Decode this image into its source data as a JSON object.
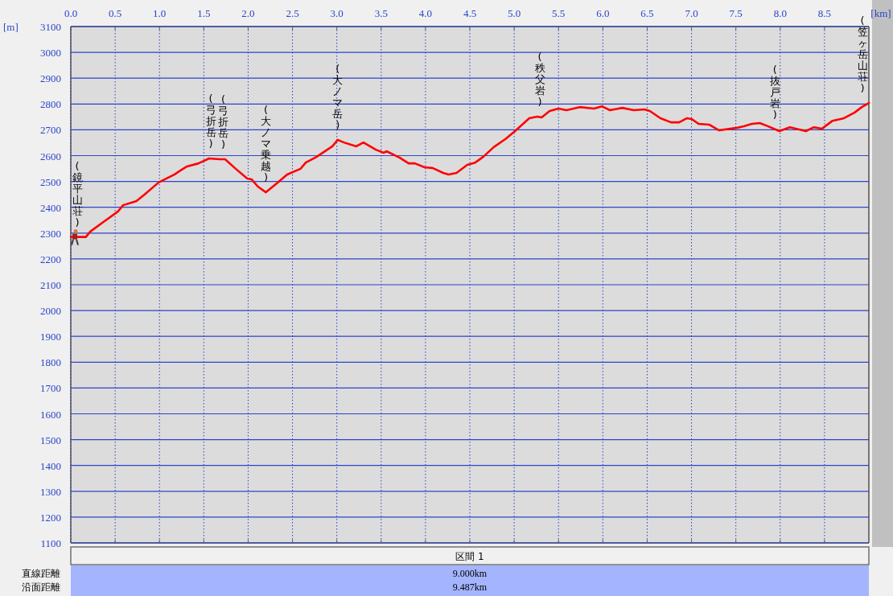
{
  "chart_data": {
    "type": "line",
    "xlabel": "[km]",
    "ylabel": "[m]",
    "xlim": [
      0,
      9
    ],
    "xticks": [
      {
        "value": 0,
        "label": "0.0"
      },
      {
        "value": 0.5,
        "label": "0.5"
      },
      {
        "value": 1,
        "label": "1.0"
      },
      {
        "value": 1.5,
        "label": "1.5"
      },
      {
        "value": 2,
        "label": "2.0"
      },
      {
        "value": 2.5,
        "label": "2.5"
      },
      {
        "value": 3,
        "label": "3.0"
      },
      {
        "value": 3.5,
        "label": "3.5"
      },
      {
        "value": 4,
        "label": "4.0"
      },
      {
        "value": 4.5,
        "label": "4.5"
      },
      {
        "value": 5,
        "label": "5.0"
      },
      {
        "value": 5.5,
        "label": "5.5"
      },
      {
        "value": 6,
        "label": "6.0"
      },
      {
        "value": 6.5,
        "label": "6.5"
      },
      {
        "value": 7,
        "label": "7.0"
      },
      {
        "value": 7.5,
        "label": "7.5"
      },
      {
        "value": 8,
        "label": "8.0"
      },
      {
        "value": 8.5,
        "label": "8.5"
      }
    ],
    "ylim": [
      1100,
      3100
    ],
    "yticks": [
      1100,
      1200,
      1300,
      1400,
      1500,
      1600,
      1700,
      1800,
      1900,
      2000,
      2100,
      2200,
      2300,
      2400,
      2500,
      2600,
      2700,
      2800,
      2900,
      3000,
      3100
    ],
    "grid": true,
    "marker": "none",
    "line_style": "solid",
    "series": [
      {
        "color": "#ff0000",
        "x": [
          0.0,
          0.17,
          0.22,
          0.38,
          0.53,
          0.59,
          0.74,
          0.83,
          0.99,
          1.17,
          1.22,
          1.31,
          1.44,
          1.56,
          1.68,
          1.74,
          1.86,
          1.99,
          2.04,
          2.11,
          2.2,
          2.32,
          2.44,
          2.59,
          2.65,
          2.77,
          2.95,
          3.01,
          3.08,
          3.22,
          3.3,
          3.44,
          3.53,
          3.56,
          3.71,
          3.81,
          3.88,
          3.99,
          4.08,
          4.2,
          4.26,
          4.35,
          4.47,
          4.56,
          4.65,
          4.77,
          4.9,
          5.01,
          5.11,
          5.17,
          5.26,
          5.31,
          5.4,
          5.5,
          5.59,
          5.74,
          5.9,
          5.99,
          6.08,
          6.22,
          6.35,
          6.47,
          6.53,
          6.65,
          6.77,
          6.86,
          6.95,
          7.0,
          7.08,
          7.2,
          7.31,
          7.5,
          7.59,
          7.68,
          7.77,
          7.86,
          7.99,
          8.11,
          8.29,
          8.38,
          8.47,
          8.59,
          8.72,
          8.84,
          8.92,
          9.0
        ],
        "values": [
          2285,
          2285,
          2306,
          2346,
          2383,
          2408,
          2424,
          2449,
          2496,
          2527,
          2539,
          2558,
          2570,
          2589,
          2586,
          2586,
          2549,
          2511,
          2508,
          2480,
          2458,
          2492,
          2527,
          2549,
          2573,
          2595,
          2636,
          2661,
          2651,
          2636,
          2651,
          2623,
          2611,
          2617,
          2592,
          2570,
          2570,
          2555,
          2552,
          2533,
          2527,
          2533,
          2564,
          2573,
          2595,
          2633,
          2664,
          2695,
          2726,
          2745,
          2751,
          2748,
          2773,
          2782,
          2776,
          2788,
          2782,
          2791,
          2776,
          2785,
          2776,
          2779,
          2773,
          2745,
          2729,
          2729,
          2745,
          2742,
          2723,
          2720,
          2698,
          2707,
          2714,
          2723,
          2726,
          2714,
          2695,
          2710,
          2695,
          2710,
          2704,
          2735,
          2745,
          2767,
          2788,
          2804
        ]
      }
    ],
    "annotations": [
      {
        "text": "(鏡平山荘)",
        "x": 0.0,
        "y": 2285
      },
      {
        "text": "(弓折岳)",
        "x": 1.58,
        "y": 2589
      },
      {
        "text": "(弓折岳)",
        "x": 1.72,
        "y": 2586
      },
      {
        "text": "(大ノマ乗越)",
        "x": 2.2,
        "y": 2458
      },
      {
        "text": "(大ノマ岳)",
        "x": 3.01,
        "y": 2661
      },
      {
        "text": "(秩父岩)",
        "x": 5.29,
        "y": 2750
      },
      {
        "text": "(抜戸岩)",
        "x": 7.94,
        "y": 2700
      },
      {
        "text": "(笠ヶ岳山荘)",
        "x": 9.0,
        "y": 2804
      },
      "区間 1",
      "直線距離",
      "9.000km",
      "沿面距離",
      "9.487km"
    ]
  }
}
